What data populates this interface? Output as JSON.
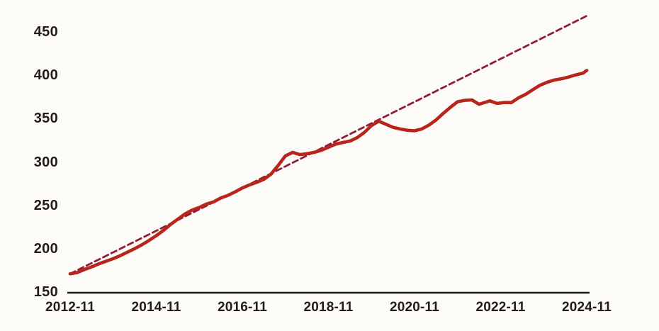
{
  "chart_data": {
    "type": "line",
    "title": "",
    "grid": false,
    "legend": false,
    "x_axis": {
      "unit": "year-month",
      "ticks": [
        "2012-11",
        "2014-11",
        "2016-11",
        "2018-11",
        "2020-11",
        "2022-11",
        "2024-11"
      ],
      "range": [
        "2012-11",
        "2024-11"
      ]
    },
    "y_axis": {
      "ticks": [
        150,
        200,
        250,
        300,
        350,
        400,
        450
      ],
      "range": [
        150,
        475
      ]
    },
    "axis_color": "#1b1b1b",
    "label_color": "#211c18",
    "background_color": "#fcfbf8",
    "series": [
      {
        "name": "trend-dashed",
        "style": "dashed",
        "color": "#8e1e37",
        "stroke_width": 2.8,
        "points": [
          [
            "2012-11",
            171
          ],
          [
            "2024-11",
            468.5
          ]
        ]
      },
      {
        "name": "actual-solid",
        "style": "solid",
        "color": "#b7261b",
        "stroke_width": 4.6,
        "points": [
          [
            "2012-11",
            171
          ],
          [
            "2013-01",
            172.5
          ],
          [
            "2013-03",
            176
          ],
          [
            "2013-05",
            179
          ],
          [
            "2013-07",
            182.5
          ],
          [
            "2013-09",
            185.5
          ],
          [
            "2013-11",
            188.5
          ],
          [
            "2014-01",
            192
          ],
          [
            "2014-03",
            196
          ],
          [
            "2014-05",
            200
          ],
          [
            "2014-07",
            204.5
          ],
          [
            "2014-09",
            209.5
          ],
          [
            "2014-11",
            215
          ],
          [
            "2015-01",
            221
          ],
          [
            "2015-03",
            228
          ],
          [
            "2015-05",
            234
          ],
          [
            "2015-07",
            240
          ],
          [
            "2015-09",
            244.5
          ],
          [
            "2015-11",
            247.5
          ],
          [
            "2016-01",
            251.5
          ],
          [
            "2016-03",
            254
          ],
          [
            "2016-05",
            258.5
          ],
          [
            "2016-07",
            261.5
          ],
          [
            "2016-09",
            265.5
          ],
          [
            "2016-11",
            270
          ],
          [
            "2017-01",
            273.5
          ],
          [
            "2017-03",
            276.5
          ],
          [
            "2017-05",
            280
          ],
          [
            "2017-07",
            286
          ],
          [
            "2017-09",
            296
          ],
          [
            "2017-11",
            307
          ],
          [
            "2018-01",
            311
          ],
          [
            "2018-03",
            308.5
          ],
          [
            "2018-05",
            309.5
          ],
          [
            "2018-07",
            311
          ],
          [
            "2018-09",
            313.5
          ],
          [
            "2018-11",
            317
          ],
          [
            "2019-01",
            320.5
          ],
          [
            "2019-03",
            322.5
          ],
          [
            "2019-05",
            324
          ],
          [
            "2019-07",
            328
          ],
          [
            "2019-09",
            334
          ],
          [
            "2019-11",
            342
          ],
          [
            "2020-01",
            347
          ],
          [
            "2020-03",
            343.5
          ],
          [
            "2020-05",
            340
          ],
          [
            "2020-07",
            338
          ],
          [
            "2020-09",
            336.5
          ],
          [
            "2020-11",
            336
          ],
          [
            "2021-01",
            338
          ],
          [
            "2021-03",
            342.5
          ],
          [
            "2021-05",
            348.5
          ],
          [
            "2021-07",
            356
          ],
          [
            "2021-09",
            363
          ],
          [
            "2021-11",
            369.5
          ],
          [
            "2022-01",
            371
          ],
          [
            "2022-03",
            371.5
          ],
          [
            "2022-05",
            366.5
          ],
          [
            "2022-08",
            370.5
          ],
          [
            "2022-10",
            367.5
          ],
          [
            "2022-12",
            368.5
          ],
          [
            "2023-02",
            368.5
          ],
          [
            "2023-04",
            374
          ],
          [
            "2023-06",
            378
          ],
          [
            "2023-08",
            383.5
          ],
          [
            "2023-10",
            388.5
          ],
          [
            "2023-12",
            392
          ],
          [
            "2024-02",
            394.5
          ],
          [
            "2024-04",
            396
          ],
          [
            "2024-06",
            398
          ],
          [
            "2024-08",
            400.5
          ],
          [
            "2024-10",
            402.5
          ],
          [
            "2024-11",
            405.5
          ]
        ]
      }
    ]
  }
}
